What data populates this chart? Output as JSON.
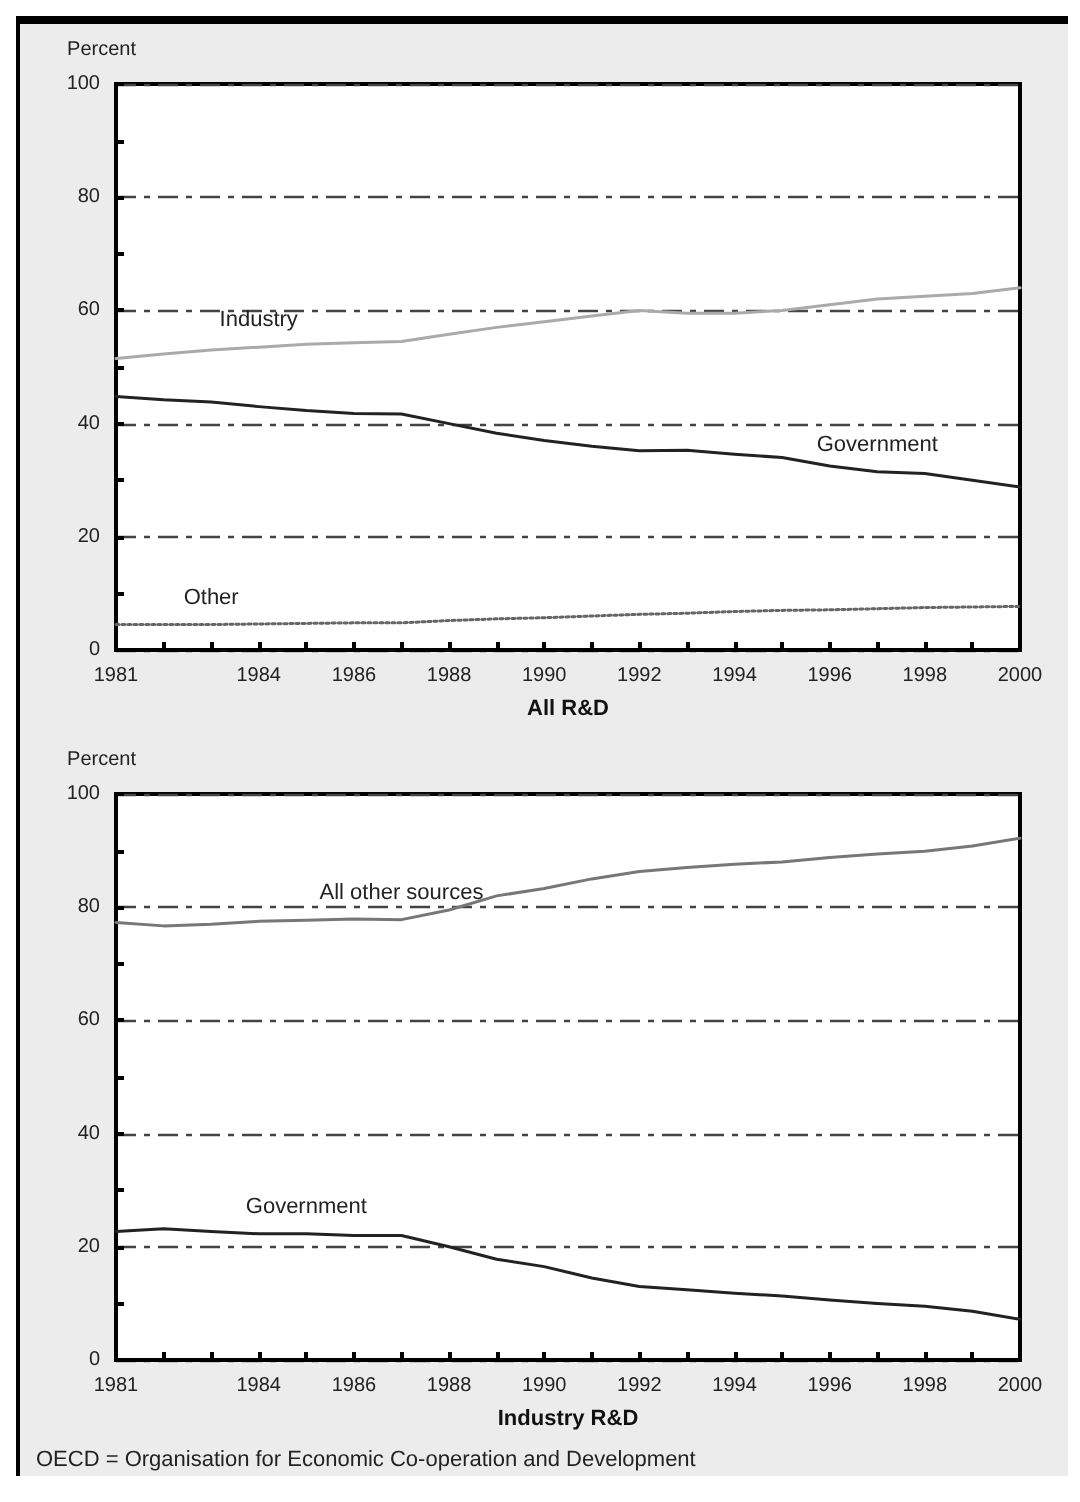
{
  "chart_data": [
    {
      "type": "line",
      "xlabel": "All R&D",
      "ylabel": "Percent",
      "x": [
        1981,
        1982,
        1983,
        1984,
        1985,
        1986,
        1987,
        1988,
        1989,
        1990,
        1991,
        1992,
        1993,
        1994,
        1995,
        1996,
        1997,
        1998,
        1999,
        2000
      ],
      "series": [
        {
          "name": "Industry",
          "color": "#aaaaaa",
          "values": [
            51.5,
            52.3,
            53,
            53.5,
            54,
            54.3,
            54.5,
            55.8,
            57,
            58,
            59,
            60,
            59.5,
            59.5,
            60,
            61,
            62,
            62.5,
            63,
            64
          ]
        },
        {
          "name": "Government",
          "color": "#222222",
          "values": [
            44.8,
            44.2,
            43.8,
            43,
            42.3,
            41.8,
            41.7,
            40,
            38.3,
            37,
            36,
            35.2,
            35.3,
            34.6,
            34,
            32.5,
            31.5,
            31.2,
            30,
            28.8
          ]
        },
        {
          "name": "Other",
          "color": "#666666",
          "line_style": "dotted",
          "values": [
            4.5,
            4.5,
            4.5,
            4.6,
            4.7,
            4.8,
            4.8,
            5.2,
            5.5,
            5.7,
            6,
            6.3,
            6.5,
            6.8,
            7,
            7.1,
            7.3,
            7.5,
            7.6,
            7.7
          ]
        }
      ],
      "xlim": [
        1981,
        2000
      ],
      "xticks": [
        1981,
        {
          "value": 1982,
          "label": null
        },
        {
          "value": 1983,
          "label": null
        },
        1984,
        {
          "value": 1985,
          "label": null
        },
        1986,
        {
          "value": 1987,
          "label": null
        },
        1988,
        {
          "value": 1989,
          "label": null
        },
        1990,
        {
          "value": 1991,
          "label": null
        },
        1992,
        {
          "value": 1993,
          "label": null
        },
        1994,
        {
          "value": 1995,
          "label": null
        },
        1996,
        {
          "value": 1997,
          "label": null
        },
        1998,
        {
          "value": 1999,
          "label": null
        },
        2000
      ],
      "ylim": [
        0,
        100
      ],
      "yticks": [
        0,
        {
          "value": 10,
          "label": null
        },
        20,
        {
          "value": 30,
          "label": null
        },
        40,
        {
          "value": 50,
          "label": null
        },
        60,
        {
          "value": 70,
          "label": null
        },
        80,
        {
          "value": 90,
          "label": null
        },
        100
      ],
      "grid": "y",
      "legend": false,
      "marker": "none",
      "line_style": "solid"
    },
    {
      "type": "line",
      "xlabel": "Industry R&D",
      "ylabel": "Percent",
      "x": [
        1981,
        1982,
        1983,
        1984,
        1985,
        1986,
        1987,
        1988,
        1989,
        1990,
        1991,
        1992,
        1993,
        1994,
        1995,
        1996,
        1997,
        1998,
        1999,
        2000
      ],
      "series": [
        {
          "name": "All other sources",
          "color": "#777777",
          "values": [
            77.3,
            76.7,
            77,
            77.5,
            77.7,
            77.9,
            77.8,
            79.5,
            82,
            83.3,
            85,
            86.3,
            87,
            87.6,
            88,
            88.8,
            89.4,
            89.9,
            90.8,
            92.2
          ]
        },
        {
          "name": "Government",
          "color": "#222222",
          "values": [
            22.7,
            23.2,
            22.7,
            22.3,
            22.3,
            22,
            22,
            20,
            17.8,
            16.5,
            14.5,
            13,
            12.4,
            11.8,
            11.3,
            10.6,
            10,
            9.5,
            8.6,
            7.2
          ]
        }
      ],
      "xlim": [
        1981,
        2000
      ],
      "xticks": [
        1981,
        {
          "value": 1982,
          "label": null
        },
        {
          "value": 1983,
          "label": null
        },
        1984,
        {
          "value": 1985,
          "label": null
        },
        1986,
        {
          "value": 1987,
          "label": null
        },
        1988,
        {
          "value": 1989,
          "label": null
        },
        1990,
        {
          "value": 1991,
          "label": null
        },
        1992,
        {
          "value": 1993,
          "label": null
        },
        1994,
        {
          "value": 1995,
          "label": null
        },
        1996,
        {
          "value": 1997,
          "label": null
        },
        1998,
        {
          "value": 1999,
          "label": null
        },
        2000
      ],
      "ylim": [
        0,
        100
      ],
      "yticks": [
        0,
        {
          "value": 10,
          "label": null
        },
        20,
        {
          "value": 30,
          "label": null
        },
        40,
        {
          "value": 50,
          "label": null
        },
        60,
        {
          "value": 70,
          "label": null
        },
        80,
        {
          "value": 90,
          "label": null
        },
        100
      ],
      "grid": "y",
      "legend": false,
      "marker": "none",
      "line_style": "solid",
      "annotations": [
        "OECD = Organisation for Economic Co-operation and Development"
      ]
    }
  ]
}
